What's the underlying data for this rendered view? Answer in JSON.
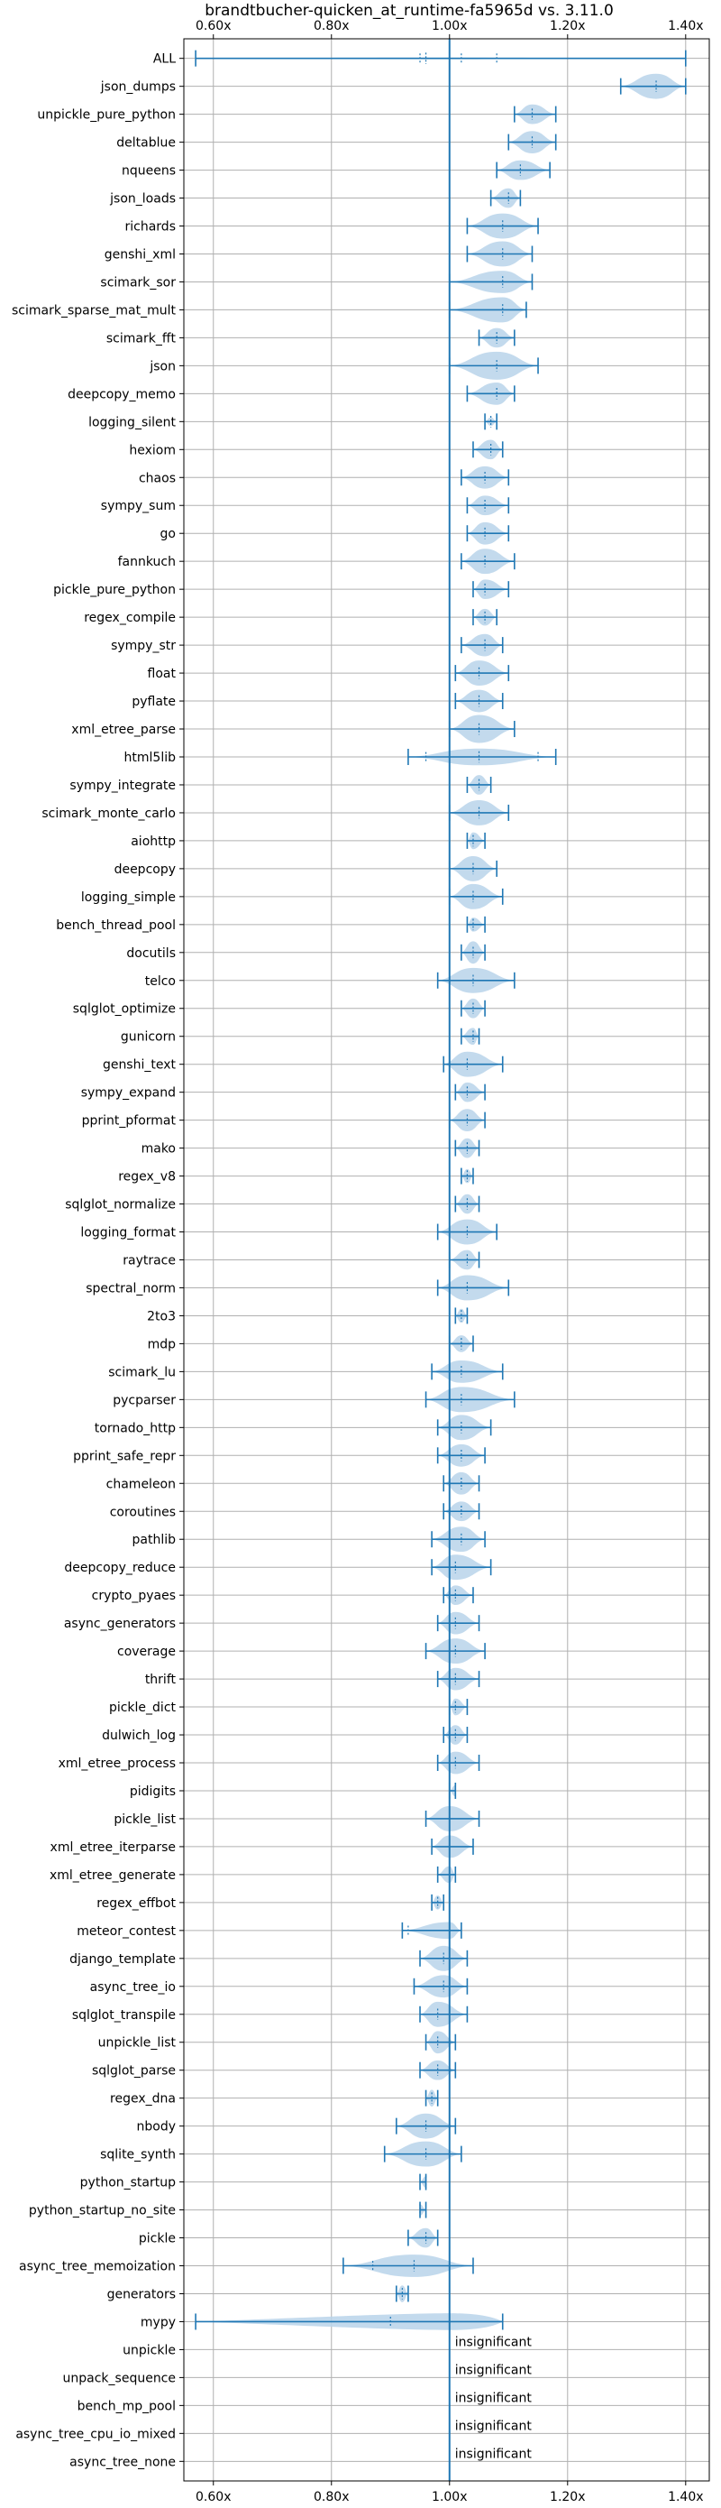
{
  "chart_data": {
    "type": "violin",
    "title": "brandtbucher-quicken_at_runtime-fa5965d vs. 3.11.0",
    "xlim": [
      0.55,
      1.44
    ],
    "xticks": [
      0.6,
      0.8,
      1.0,
      1.2,
      1.4
    ],
    "xtick_labels": [
      "0.60x",
      "0.80x",
      "1.00x",
      "1.20x",
      "1.40x"
    ],
    "xticks_top": true,
    "xticks_bottom": true,
    "reference_line": 1.0,
    "grid": true,
    "color": "#1f77b4",
    "violin_color": "#b9d3ea",
    "insignificant_label": "insignificant",
    "benchmarks": [
      {
        "name": "ALL",
        "center": 0.96,
        "min": 0.57,
        "max": 1.4,
        "width": 0.03,
        "extra_ticks": [
          0.95,
          1.02,
          1.08
        ]
      },
      {
        "name": "json_dumps",
        "center": 1.35,
        "min": 1.29,
        "max": 1.4,
        "width": 0.45
      },
      {
        "name": "unpickle_pure_python",
        "center": 1.14,
        "min": 1.11,
        "max": 1.18,
        "width": 0.35
      },
      {
        "name": "deltablue",
        "center": 1.14,
        "min": 1.1,
        "max": 1.18,
        "width": 0.4
      },
      {
        "name": "nqueens",
        "center": 1.12,
        "min": 1.08,
        "max": 1.17,
        "width": 0.35
      },
      {
        "name": "json_loads",
        "center": 1.1,
        "min": 1.07,
        "max": 1.12,
        "width": 0.35
      },
      {
        "name": "richards",
        "center": 1.09,
        "min": 1.03,
        "max": 1.15,
        "width": 0.45
      },
      {
        "name": "genshi_xml",
        "center": 1.09,
        "min": 1.03,
        "max": 1.14,
        "width": 0.45
      },
      {
        "name": "scimark_sor",
        "center": 1.09,
        "min": 1.0,
        "max": 1.14,
        "width": 0.4
      },
      {
        "name": "scimark_sparse_mat_mult",
        "center": 1.09,
        "min": 1.0,
        "max": 1.13,
        "width": 0.45
      },
      {
        "name": "scimark_fft",
        "center": 1.08,
        "min": 1.05,
        "max": 1.11,
        "width": 0.35
      },
      {
        "name": "json",
        "center": 1.08,
        "min": 1.0,
        "max": 1.15,
        "width": 0.5
      },
      {
        "name": "deepcopy_memo",
        "center": 1.08,
        "min": 1.03,
        "max": 1.11,
        "width": 0.4
      },
      {
        "name": "logging_silent",
        "center": 1.07,
        "min": 1.06,
        "max": 1.08,
        "width": 0.15
      },
      {
        "name": "hexiom",
        "center": 1.07,
        "min": 1.04,
        "max": 1.09,
        "width": 0.35
      },
      {
        "name": "chaos",
        "center": 1.06,
        "min": 1.02,
        "max": 1.1,
        "width": 0.4
      },
      {
        "name": "sympy_sum",
        "center": 1.06,
        "min": 1.03,
        "max": 1.1,
        "width": 0.35
      },
      {
        "name": "go",
        "center": 1.06,
        "min": 1.03,
        "max": 1.1,
        "width": 0.4
      },
      {
        "name": "fannkuch",
        "center": 1.06,
        "min": 1.02,
        "max": 1.11,
        "width": 0.45
      },
      {
        "name": "pickle_pure_python",
        "center": 1.06,
        "min": 1.04,
        "max": 1.1,
        "width": 0.35
      },
      {
        "name": "regex_compile",
        "center": 1.06,
        "min": 1.04,
        "max": 1.08,
        "width": 0.3
      },
      {
        "name": "sympy_str",
        "center": 1.06,
        "min": 1.02,
        "max": 1.09,
        "width": 0.4
      },
      {
        "name": "float",
        "center": 1.05,
        "min": 1.01,
        "max": 1.1,
        "width": 0.45
      },
      {
        "name": "pyflate",
        "center": 1.05,
        "min": 1.01,
        "max": 1.09,
        "width": 0.4
      },
      {
        "name": "xml_etree_parse",
        "center": 1.05,
        "min": 1.0,
        "max": 1.11,
        "width": 0.5
      },
      {
        "name": "html5lib",
        "center": 1.05,
        "min": 0.93,
        "max": 1.18,
        "width": 0.3,
        "extra_ticks": [
          0.96,
          1.15
        ]
      },
      {
        "name": "sympy_integrate",
        "center": 1.05,
        "min": 1.03,
        "max": 1.07,
        "width": 0.35
      },
      {
        "name": "scimark_monte_carlo",
        "center": 1.05,
        "min": 1.0,
        "max": 1.1,
        "width": 0.45
      },
      {
        "name": "aiohttp",
        "center": 1.04,
        "min": 1.03,
        "max": 1.06,
        "width": 0.3
      },
      {
        "name": "deepcopy",
        "center": 1.04,
        "min": 1.0,
        "max": 1.08,
        "width": 0.45
      },
      {
        "name": "logging_simple",
        "center": 1.04,
        "min": 1.0,
        "max": 1.09,
        "width": 0.45
      },
      {
        "name": "bench_thread_pool",
        "center": 1.04,
        "min": 1.03,
        "max": 1.06,
        "width": 0.25
      },
      {
        "name": "docutils",
        "center": 1.04,
        "min": 1.02,
        "max": 1.06,
        "width": 0.4
      },
      {
        "name": "telco",
        "center": 1.04,
        "min": 0.98,
        "max": 1.11,
        "width": 0.45
      },
      {
        "name": "sqlglot_optimize",
        "center": 1.04,
        "min": 1.02,
        "max": 1.06,
        "width": 0.35
      },
      {
        "name": "gunicorn",
        "center": 1.04,
        "min": 1.02,
        "max": 1.05,
        "width": 0.3
      },
      {
        "name": "genshi_text",
        "center": 1.03,
        "min": 0.99,
        "max": 1.09,
        "width": 0.45
      },
      {
        "name": "sympy_expand",
        "center": 1.03,
        "min": 1.01,
        "max": 1.06,
        "width": 0.35
      },
      {
        "name": "pprint_pformat",
        "center": 1.03,
        "min": 1.0,
        "max": 1.06,
        "width": 0.4
      },
      {
        "name": "mako",
        "center": 1.03,
        "min": 1.01,
        "max": 1.05,
        "width": 0.35
      },
      {
        "name": "regex_v8",
        "center": 1.03,
        "min": 1.02,
        "max": 1.04,
        "width": 0.25
      },
      {
        "name": "sqlglot_normalize",
        "center": 1.03,
        "min": 1.01,
        "max": 1.05,
        "width": 0.35
      },
      {
        "name": "logging_format",
        "center": 1.03,
        "min": 0.98,
        "max": 1.08,
        "width": 0.45
      },
      {
        "name": "raytrace",
        "center": 1.03,
        "min": 1.0,
        "max": 1.05,
        "width": 0.35
      },
      {
        "name": "spectral_norm",
        "center": 1.03,
        "min": 0.98,
        "max": 1.1,
        "width": 0.45
      },
      {
        "name": "2to3",
        "center": 1.02,
        "min": 1.01,
        "max": 1.03,
        "width": 0.25
      },
      {
        "name": "mdp",
        "center": 1.02,
        "min": 1.0,
        "max": 1.04,
        "width": 0.3
      },
      {
        "name": "scimark_lu",
        "center": 1.02,
        "min": 0.97,
        "max": 1.09,
        "width": 0.4
      },
      {
        "name": "pycparser",
        "center": 1.02,
        "min": 0.96,
        "max": 1.11,
        "width": 0.45
      },
      {
        "name": "tornado_http",
        "center": 1.02,
        "min": 0.98,
        "max": 1.07,
        "width": 0.45
      },
      {
        "name": "pprint_safe_repr",
        "center": 1.02,
        "min": 0.98,
        "max": 1.06,
        "width": 0.4
      },
      {
        "name": "chameleon",
        "center": 1.02,
        "min": 0.99,
        "max": 1.05,
        "width": 0.4
      },
      {
        "name": "coroutines",
        "center": 1.02,
        "min": 0.99,
        "max": 1.05,
        "width": 0.35
      },
      {
        "name": "pathlib",
        "center": 1.02,
        "min": 0.97,
        "max": 1.06,
        "width": 0.45
      },
      {
        "name": "deepcopy_reduce",
        "center": 1.01,
        "min": 0.97,
        "max": 1.07,
        "width": 0.45
      },
      {
        "name": "crypto_pyaes",
        "center": 1.01,
        "min": 0.99,
        "max": 1.04,
        "width": 0.35
      },
      {
        "name": "async_generators",
        "center": 1.01,
        "min": 0.98,
        "max": 1.05,
        "width": 0.4
      },
      {
        "name": "coverage",
        "center": 1.01,
        "min": 0.96,
        "max": 1.06,
        "width": 0.45
      },
      {
        "name": "thrift",
        "center": 1.01,
        "min": 0.98,
        "max": 1.05,
        "width": 0.4
      },
      {
        "name": "pickle_dict",
        "center": 1.01,
        "min": 1.0,
        "max": 1.03,
        "width": 0.3
      },
      {
        "name": "dulwich_log",
        "center": 1.01,
        "min": 0.99,
        "max": 1.03,
        "width": 0.35
      },
      {
        "name": "xml_etree_process",
        "center": 1.01,
        "min": 0.98,
        "max": 1.05,
        "width": 0.4
      },
      {
        "name": "pidigits",
        "center": 1.01,
        "min": 1.0,
        "max": 1.01,
        "width": 0.2
      },
      {
        "name": "pickle_list",
        "center": 1.0,
        "min": 0.96,
        "max": 1.05,
        "width": 0.45
      },
      {
        "name": "xml_etree_iterparse",
        "center": 1.0,
        "min": 0.97,
        "max": 1.04,
        "width": 0.4
      },
      {
        "name": "xml_etree_generate",
        "center": 1.0,
        "min": 0.98,
        "max": 1.01,
        "width": 0.3
      },
      {
        "name": "regex_effbot",
        "center": 0.98,
        "min": 0.97,
        "max": 0.99,
        "width": 0.25
      },
      {
        "name": "meteor_contest",
        "center": 1.0,
        "min": 0.92,
        "max": 1.02,
        "width": 0.3,
        "extra_ticks": [
          0.93
        ]
      },
      {
        "name": "django_template",
        "center": 0.99,
        "min": 0.95,
        "max": 1.03,
        "width": 0.45
      },
      {
        "name": "async_tree_io",
        "center": 0.99,
        "min": 0.94,
        "max": 1.03,
        "width": 0.4
      },
      {
        "name": "sqlglot_transpile",
        "center": 0.98,
        "min": 0.95,
        "max": 1.03,
        "width": 0.45
      },
      {
        "name": "unpickle_list",
        "center": 0.98,
        "min": 0.96,
        "max": 1.01,
        "width": 0.4
      },
      {
        "name": "sqlglot_parse",
        "center": 0.98,
        "min": 0.95,
        "max": 1.01,
        "width": 0.35
      },
      {
        "name": "regex_dna",
        "center": 0.97,
        "min": 0.96,
        "max": 0.98,
        "width": 0.3
      },
      {
        "name": "nbody",
        "center": 0.96,
        "min": 0.91,
        "max": 1.01,
        "width": 0.45
      },
      {
        "name": "sqlite_synth",
        "center": 0.96,
        "min": 0.89,
        "max": 1.02,
        "width": 0.45
      },
      {
        "name": "python_startup",
        "center": 0.96,
        "min": 0.95,
        "max": 0.96,
        "width": 0.2
      },
      {
        "name": "python_startup_no_site",
        "center": 0.95,
        "min": 0.95,
        "max": 0.96,
        "width": 0.2
      },
      {
        "name": "pickle",
        "center": 0.96,
        "min": 0.93,
        "max": 0.98,
        "width": 0.35
      },
      {
        "name": "async_tree_memoization",
        "center": 0.94,
        "min": 0.82,
        "max": 1.04,
        "width": 0.4,
        "extra_ticks": [
          0.87
        ]
      },
      {
        "name": "generators",
        "center": 0.92,
        "min": 0.91,
        "max": 0.93,
        "width": 0.3
      },
      {
        "name": "mypy",
        "center": 1.0,
        "min": 0.57,
        "max": 1.09,
        "width": 0.3,
        "extra_ticks": [
          0.9
        ],
        "shape": "skewed"
      },
      {
        "name": "unpickle",
        "insignificant": true
      },
      {
        "name": "unpack_sequence",
        "insignificant": true
      },
      {
        "name": "bench_mp_pool",
        "insignificant": true
      },
      {
        "name": "async_tree_cpu_io_mixed",
        "insignificant": true
      },
      {
        "name": "async_tree_none",
        "insignificant": true
      }
    ]
  }
}
